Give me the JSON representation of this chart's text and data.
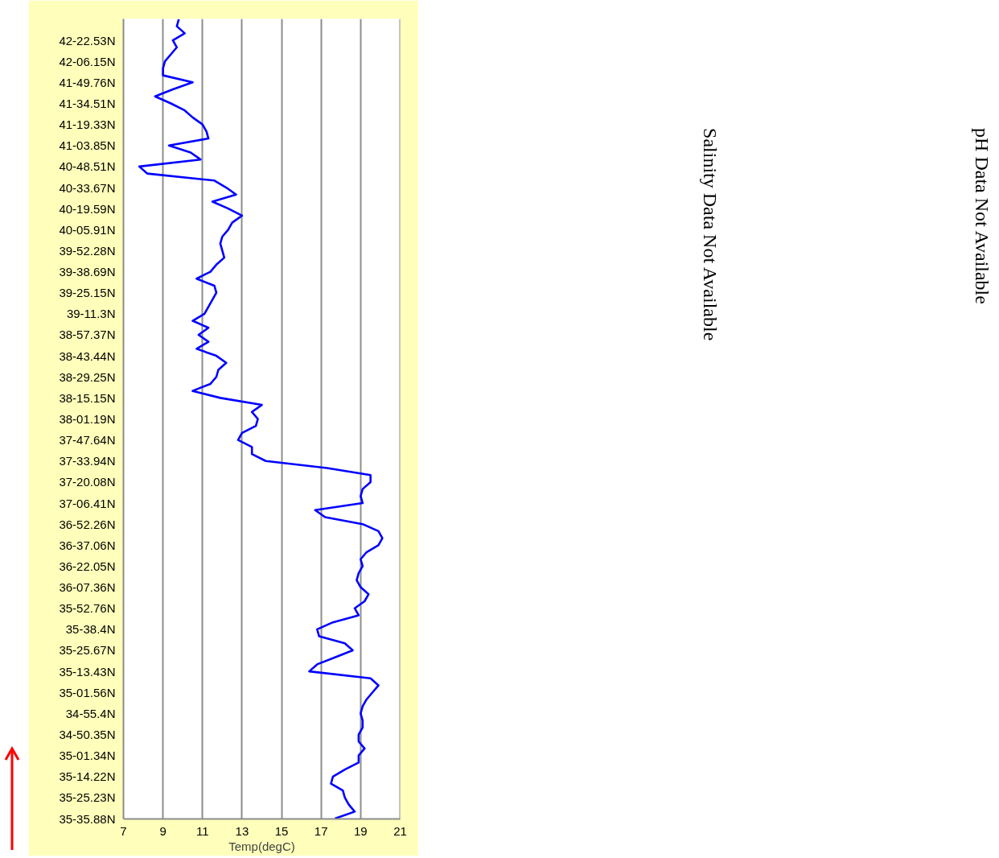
{
  "chart_data": {
    "type": "line",
    "orientation": "horizontal",
    "xlabel": "Temp(degC)",
    "color": "#0000ff",
    "line_style": "solid",
    "grid": "x",
    "xlim": [
      7,
      21
    ],
    "xticks": [
      7,
      9,
      11,
      13,
      15,
      17,
      19,
      21
    ],
    "categories": [
      null,
      null,
      null,
      "42-22.53N",
      null,
      null,
      "42-06.15N",
      null,
      null,
      "41-49.76N",
      null,
      null,
      "41-34.51N",
      null,
      null,
      "41-19.33N",
      null,
      null,
      "41-03.85N",
      null,
      null,
      "40-48.51N",
      null,
      null,
      "40-33.67N",
      null,
      null,
      "40-19.59N",
      null,
      null,
      "40-05.91N",
      null,
      null,
      "39-52.28N",
      null,
      null,
      "39-38.69N",
      null,
      null,
      "39-25.15N",
      null,
      null,
      "39-11.3N",
      null,
      null,
      "38-57.37N",
      null,
      null,
      "38-43.44N",
      null,
      null,
      "38-29.25N",
      null,
      null,
      "38-15.15N",
      null,
      null,
      "38-01.19N",
      null,
      null,
      "37-47.64N",
      null,
      null,
      "37-33.94N",
      null,
      null,
      "37-20.08N",
      null,
      null,
      "37-06.41N",
      null,
      null,
      "36-52.26N",
      null,
      null,
      "36-37.06N",
      null,
      null,
      "36-22.05N",
      null,
      null,
      "36-07.36N",
      null,
      null,
      "35-52.76N",
      null,
      null,
      "35-38.4N",
      null,
      null,
      "35-25.67N",
      null,
      null,
      "35-13.43N",
      null,
      null,
      "35-01.56N",
      null,
      null,
      "34-55.4N",
      null,
      null,
      "34-50.35N",
      null,
      null,
      "35-01.34N",
      null,
      null,
      "35-14.22N",
      null,
      null,
      "35-25.23N",
      null,
      null,
      "35-35.88N"
    ],
    "values": [
      9.8,
      9.7,
      10.1,
      9.5,
      9.7,
      9.4,
      9.1,
      9.0,
      9.0,
      10.5,
      9.5,
      8.6,
      9.4,
      10.1,
      10.5,
      11.0,
      11.2,
      11.3,
      9.3,
      10.4,
      10.9,
      7.8,
      8.2,
      11.6,
      12.2,
      12.7,
      11.5,
      12.3,
      13.0,
      12.5,
      12.3,
      12.0,
      11.9,
      12.0,
      12.1,
      11.7,
      11.4,
      10.7,
      11.6,
      11.7,
      11.5,
      11.3,
      11.1,
      10.5,
      11.3,
      10.8,
      11.3,
      10.7,
      11.7,
      12.2,
      11.8,
      11.7,
      11.4,
      10.5,
      11.9,
      14.0,
      13.5,
      13.8,
      13.7,
      13.0,
      12.8,
      13.5,
      13.5,
      14.2,
      17.3,
      19.5,
      19.5,
      19.1,
      19.0,
      19.1,
      16.7,
      17.2,
      19.1,
      19.9,
      20.1,
      19.9,
      19.3,
      19.0,
      19.1,
      18.9,
      18.8,
      19.0,
      19.4,
      19.2,
      18.7,
      18.9,
      17.6,
      16.8,
      16.9,
      18.2,
      18.6,
      17.7,
      16.8,
      16.4,
      19.5,
      19.9,
      19.6,
      19.3,
      19.1,
      19.0,
      19.1,
      19.1,
      18.9,
      18.9,
      19.2,
      18.9,
      18.9,
      18.2,
      17.6,
      17.5,
      18.1,
      18.2,
      18.4,
      18.7,
      17.7
    ],
    "annotations": [
      "Salinity Data Not Available",
      "pH Data Not Available"
    ]
  }
}
